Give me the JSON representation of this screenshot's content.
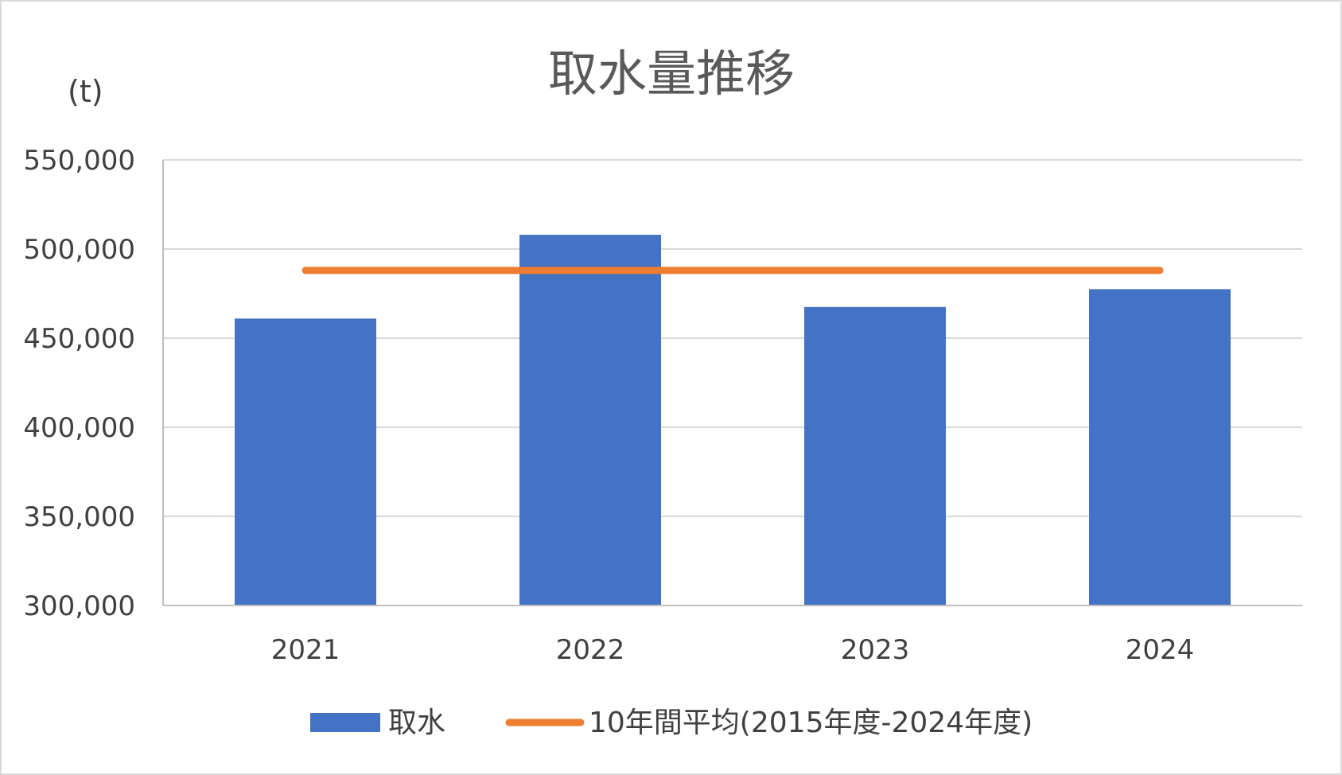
{
  "chart_data": {
    "type": "bar",
    "title": "取水量推移",
    "ylabel": "(t)",
    "xlabel": "",
    "categories": [
      "2021",
      "2022",
      "2023",
      "2024"
    ],
    "ylim": [
      300000,
      550000
    ],
    "ytick_values": [
      300000,
      350000,
      400000,
      450000,
      500000,
      550000
    ],
    "ytick_labels": [
      "300,000",
      "350,000",
      "400,000",
      "450,000",
      "500,000",
      "550,000"
    ],
    "grid": true,
    "legend_position": "bottom",
    "series": [
      {
        "name": "取水",
        "type": "bar",
        "color": "#4472C4",
        "values": [
          461000,
          508000,
          467500,
          477500
        ]
      },
      {
        "name": "10年間平均(2015年度-2024年度)",
        "type": "line",
        "color": "#ED7D31",
        "values": [
          488000,
          488000,
          488000,
          488000
        ]
      }
    ]
  }
}
